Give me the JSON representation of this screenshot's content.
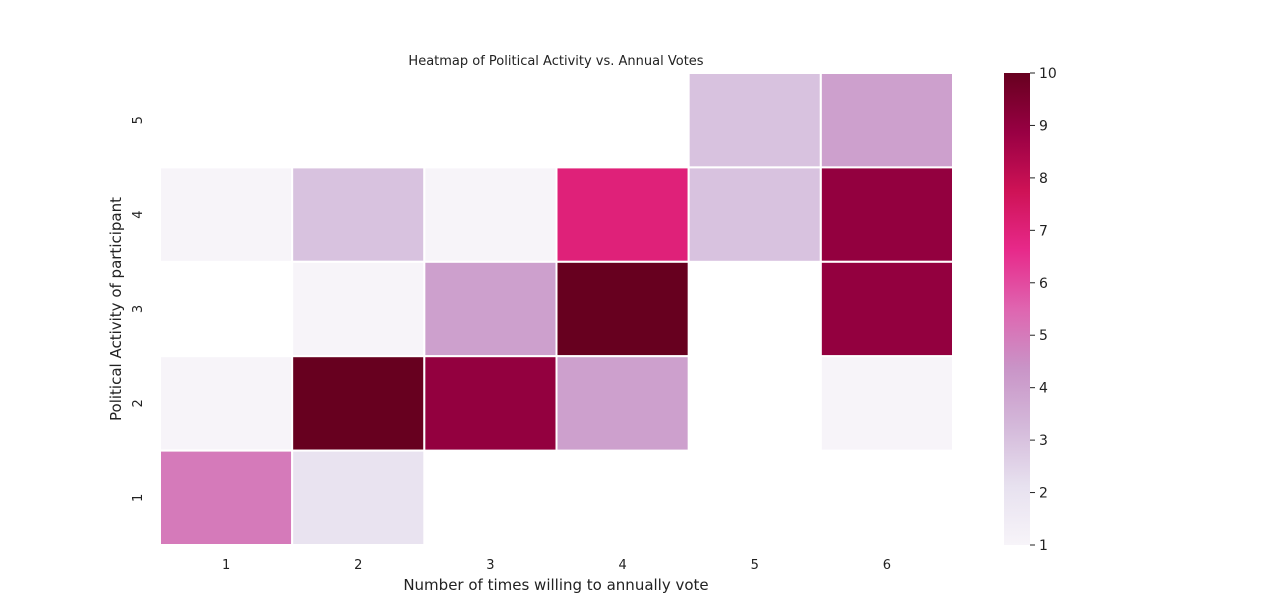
{
  "chart_data": {
    "type": "heatmap",
    "title": "Heatmap of Political Activity vs. Annual Votes",
    "xlabel": "Number of times willing to annually vote",
    "ylabel": "Political Activity of participant",
    "x_categories": [
      "1",
      "2",
      "3",
      "4",
      "5",
      "6"
    ],
    "y_categories": [
      "5",
      "4",
      "3",
      "2",
      "1"
    ],
    "values": [
      [
        null,
        null,
        null,
        null,
        3,
        4
      ],
      [
        1,
        3,
        1,
        7,
        3,
        9
      ],
      [
        null,
        1,
        4,
        10,
        null,
        9
      ],
      [
        1,
        10,
        9,
        4,
        null,
        1
      ],
      [
        5,
        2,
        null,
        null,
        null,
        null
      ]
    ],
    "colorbar": {
      "min": 1,
      "max": 10,
      "ticks": [
        "1",
        "2",
        "3",
        "4",
        "5",
        "6",
        "7",
        "8",
        "9",
        "10"
      ]
    },
    "colormap": [
      "#f7f4f9",
      "#e7e1ef",
      "#d4b9da",
      "#c994c7",
      "#df65b0",
      "#e7298a",
      "#ce1256",
      "#980043",
      "#67001f"
    ]
  }
}
